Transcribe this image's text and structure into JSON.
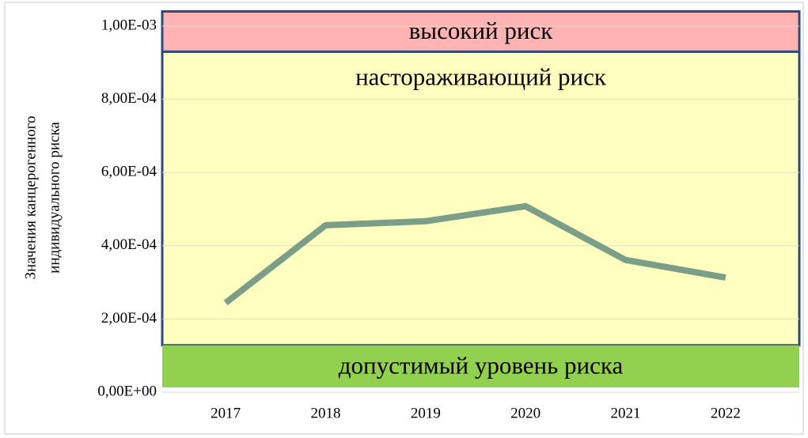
{
  "chart_data": {
    "type": "line",
    "ylabel": [
      "Значения канцерогенного",
      "индивидуального риска"
    ],
    "categories": [
      "2017",
      "2018",
      "2019",
      "2020",
      "2021",
      "2022"
    ],
    "series": [
      {
        "color": "#7a9e87",
        "values": [
          0.000244,
          0.000456,
          0.000467,
          0.000508,
          0.000361,
          0.000313
        ]
      }
    ],
    "ylim": [
      0,
      0.00104
    ],
    "yticks": [
      {
        "value": 0,
        "label": "0,00E+00"
      },
      {
        "value": 0.0002,
        "label": "2,00E-04"
      },
      {
        "value": 0.0004,
        "label": "4,00E-04"
      },
      {
        "value": 0.0006,
        "label": "6,00E-04"
      },
      {
        "value": 0.0008,
        "label": "8,00E-04"
      },
      {
        "value": 0.001,
        "label": "1,00E-03"
      }
    ],
    "grid": true,
    "zones": [
      {
        "label": "высокий риск",
        "range": [
          0.00093,
          0.00104
        ],
        "color": "#ffb3b3",
        "border": "#2e4a7a"
      },
      {
        "label": "настораживающий  риск",
        "range": [
          0.000128,
          0.00093
        ],
        "color": "#ffffc0",
        "border": "#2e4a7a"
      },
      {
        "label": "допустимый уровень риска",
        "range": [
          1.3e-05,
          0.000128
        ],
        "color": "#92d050",
        "border": null
      }
    ]
  }
}
